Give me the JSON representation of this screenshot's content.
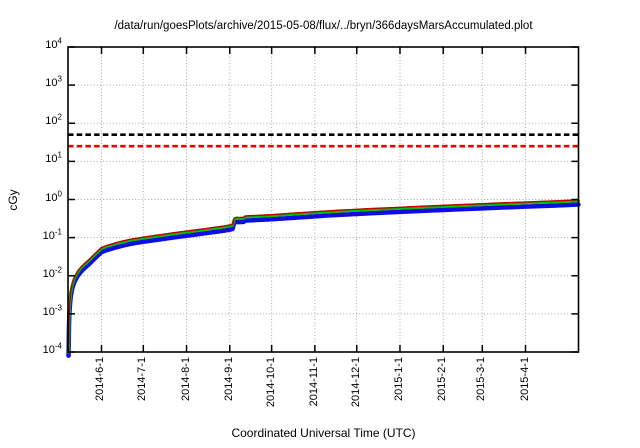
{
  "window": {
    "background": "#ffffff",
    "text_color": "#000000"
  },
  "chart_data": {
    "type": "line",
    "title": "/data/run/goesPlots/archive/2015-05-08/flux/../bryn/366daysMarsAccumulated.plot",
    "xlabel": "Coordinated Universal Time (UTC)",
    "ylabel": "cGy",
    "y_scale": "log",
    "ylim": [
      0.0001,
      10000
    ],
    "y_tick_exponents": [
      4,
      3,
      2,
      1,
      0,
      -1,
      -2,
      -3,
      -4
    ],
    "grid": true,
    "grid_color": "#a8a8a8",
    "legend_position": "none",
    "x_total_days": 366,
    "x_ticks": [
      {
        "label": "2014-6-1",
        "t": 0.0656
      },
      {
        "label": "2014-7-1",
        "t": 0.1475
      },
      {
        "label": "2014-8-1",
        "t": 0.2322
      },
      {
        "label": "2014-9-1",
        "t": 0.3169
      },
      {
        "label": "2014-10-1",
        "t": 0.3989
      },
      {
        "label": "2014-11-1",
        "t": 0.4836
      },
      {
        "label": "2014-12-1",
        "t": 0.5656
      },
      {
        "label": "2015-1-1",
        "t": 0.6503
      },
      {
        "label": "2015-2-1",
        "t": 0.735
      },
      {
        "label": "2015-3-1",
        "t": 0.8115
      },
      {
        "label": "2015-4-1",
        "t": 0.8962
      }
    ],
    "ref_lines": [
      {
        "name": "black-dashed-limit",
        "value": 50,
        "color": "#000000",
        "style": "dashed"
      },
      {
        "name": "red-dashed-limit",
        "value": 25,
        "color": "#ee0000",
        "style": "dashed"
      }
    ],
    "series": [
      {
        "name": "accumulated-dose-blue",
        "color": "#0d0de0",
        "stroke_width": 4.5,
        "scale": 0.8
      },
      {
        "name": "accumulated-dose-green",
        "color": "#00c000",
        "stroke_width": 3.0,
        "scale": 1.0
      },
      {
        "name": "accumulated-dose-red",
        "color": "#c00000",
        "stroke_width": 1.4,
        "scale": 1.06
      }
    ],
    "base_points_day_cGy": [
      [
        0.4,
        0.0001
      ],
      [
        0.7,
        0.0006
      ],
      [
        1,
        0.0013
      ],
      [
        1.5,
        0.0024
      ],
      [
        2,
        0.0036
      ],
      [
        3,
        0.0057
      ],
      [
        4,
        0.0075
      ],
      [
        5,
        0.0092
      ],
      [
        7,
        0.0125
      ],
      [
        9,
        0.0155
      ],
      [
        12,
        0.02
      ],
      [
        15,
        0.025
      ],
      [
        18,
        0.032
      ],
      [
        21,
        0.041
      ],
      [
        24,
        0.052
      ],
      [
        28,
        0.059
      ],
      [
        33,
        0.067
      ],
      [
        38,
        0.075
      ],
      [
        43,
        0.083
      ],
      [
        48,
        0.09
      ],
      [
        54,
        0.097
      ],
      [
        61,
        0.106
      ],
      [
        68,
        0.115
      ],
      [
        76,
        0.127
      ],
      [
        85,
        0.14
      ],
      [
        93,
        0.153
      ],
      [
        100,
        0.166
      ],
      [
        107,
        0.18
      ],
      [
        112,
        0.191
      ],
      [
        116,
        0.203
      ],
      [
        118,
        0.21
      ],
      [
        118.6,
        0.262
      ],
      [
        119.2,
        0.3
      ],
      [
        120,
        0.318
      ],
      [
        121,
        0.322
      ],
      [
        122.5,
        0.318
      ],
      [
        124,
        0.32
      ],
      [
        126,
        0.323
      ],
      [
        126.8,
        0.345
      ],
      [
        128,
        0.352
      ],
      [
        130,
        0.354
      ],
      [
        133,
        0.358
      ],
      [
        137,
        0.364
      ],
      [
        141,
        0.37
      ],
      [
        146,
        0.378
      ],
      [
        153,
        0.395
      ],
      [
        161,
        0.413
      ],
      [
        169,
        0.432
      ],
      [
        177,
        0.452
      ],
      [
        186,
        0.474
      ],
      [
        196,
        0.498
      ],
      [
        207,
        0.522
      ],
      [
        217,
        0.545
      ],
      [
        228,
        0.568
      ],
      [
        238,
        0.59
      ],
      [
        248,
        0.615
      ],
      [
        258,
        0.638
      ],
      [
        269,
        0.662
      ],
      [
        279,
        0.688
      ],
      [
        288,
        0.71
      ],
      [
        297,
        0.733
      ],
      [
        307,
        0.758
      ],
      [
        317,
        0.783
      ],
      [
        328,
        0.81
      ],
      [
        338,
        0.838
      ],
      [
        348,
        0.866
      ],
      [
        357,
        0.893
      ],
      [
        362,
        0.91
      ],
      [
        366,
        0.925
      ]
    ]
  }
}
